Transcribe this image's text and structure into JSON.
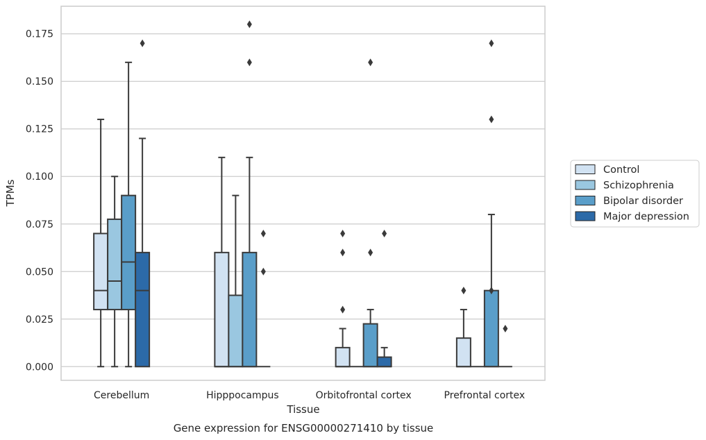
{
  "chart_data": {
    "type": "boxplot",
    "caption": "Gene expression for ENSG00000271410 by tissue",
    "xlabel": "Tissue",
    "ylabel": "TPMs",
    "ylim": [
      -0.0072,
      0.1895
    ],
    "yticks": [
      0.0,
      0.025,
      0.05,
      0.075,
      0.1,
      0.125,
      0.15,
      0.175
    ],
    "ytick_labels": [
      "0.000",
      "0.025",
      "0.050",
      "0.075",
      "0.100",
      "0.125",
      "0.150",
      "0.175"
    ],
    "grid": "horizontal",
    "legend_position": "center-right",
    "categories": [
      "Cerebellum",
      "Hipppocampus",
      "Orbitofrontal cortex",
      "Prefrontal cortex"
    ],
    "series": [
      {
        "name": "Control",
        "color": "#d1e2f2",
        "boxes": [
          {
            "q1": 0.03,
            "median": 0.04,
            "q3": 0.07,
            "whisker_low": 0.0,
            "whisker_high": 0.13,
            "outliers": []
          },
          {
            "q1": 0.0,
            "median": 0.0,
            "q3": 0.06,
            "whisker_low": 0.0,
            "whisker_high": 0.11,
            "outliers": []
          },
          {
            "q1": 0.0,
            "median": 0.0,
            "q3": 0.01,
            "whisker_low": 0.0,
            "whisker_high": 0.02,
            "outliers": [
              0.03,
              0.06,
              0.07
            ]
          },
          {
            "q1": 0.0,
            "median": 0.0,
            "q3": 0.015,
            "whisker_low": 0.0,
            "whisker_high": 0.03,
            "outliers": [
              0.04
            ]
          }
        ]
      },
      {
        "name": "Schizophrenia",
        "color": "#9ac7e0",
        "boxes": [
          {
            "q1": 0.03,
            "median": 0.045,
            "q3": 0.0775,
            "whisker_low": 0.0,
            "whisker_high": 0.1,
            "outliers": []
          },
          {
            "q1": 0.0,
            "median": 0.0,
            "q3": 0.0375,
            "whisker_low": 0.0,
            "whisker_high": 0.09,
            "outliers": []
          },
          {
            "q1": 0.0,
            "median": 0.0,
            "q3": 0.0,
            "whisker_low": 0.0,
            "whisker_high": 0.0,
            "outliers": []
          },
          {
            "q1": 0.0,
            "median": 0.0,
            "q3": 0.0,
            "whisker_low": 0.0,
            "whisker_high": 0.0,
            "outliers": []
          }
        ]
      },
      {
        "name": "Bipolar disorder",
        "color": "#5a9ec9",
        "boxes": [
          {
            "q1": 0.03,
            "median": 0.055,
            "q3": 0.09,
            "whisker_low": 0.0,
            "whisker_high": 0.16,
            "outliers": []
          },
          {
            "q1": 0.0,
            "median": 0.0,
            "q3": 0.06,
            "whisker_low": 0.0,
            "whisker_high": 0.11,
            "outliers": [
              0.16,
              0.18
            ]
          },
          {
            "q1": 0.0,
            "median": 0.0,
            "q3": 0.0225,
            "whisker_low": 0.0,
            "whisker_high": 0.03,
            "outliers": [
              0.06,
              0.16
            ]
          },
          {
            "q1": 0.0,
            "median": 0.0,
            "q3": 0.04,
            "whisker_low": 0.0,
            "whisker_high": 0.08,
            "outliers": [
              0.04,
              0.13,
              0.17
            ]
          }
        ]
      },
      {
        "name": "Major depression",
        "color": "#2c6aa8",
        "boxes": [
          {
            "q1": 0.0,
            "median": 0.04,
            "q3": 0.06,
            "whisker_low": 0.0,
            "whisker_high": 0.12,
            "outliers": [
              0.17
            ]
          },
          {
            "q1": 0.0,
            "median": 0.0,
            "q3": 0.0,
            "whisker_low": 0.0,
            "whisker_high": 0.0,
            "outliers": [
              0.05,
              0.07
            ]
          },
          {
            "q1": 0.0,
            "median": 0.0,
            "q3": 0.005,
            "whisker_low": 0.0,
            "whisker_high": 0.01,
            "outliers": [
              0.07
            ]
          },
          {
            "q1": 0.0,
            "median": 0.0,
            "q3": 0.0,
            "whisker_low": 0.0,
            "whisker_high": 0.0,
            "outliers": [
              0.02
            ]
          }
        ]
      }
    ]
  }
}
